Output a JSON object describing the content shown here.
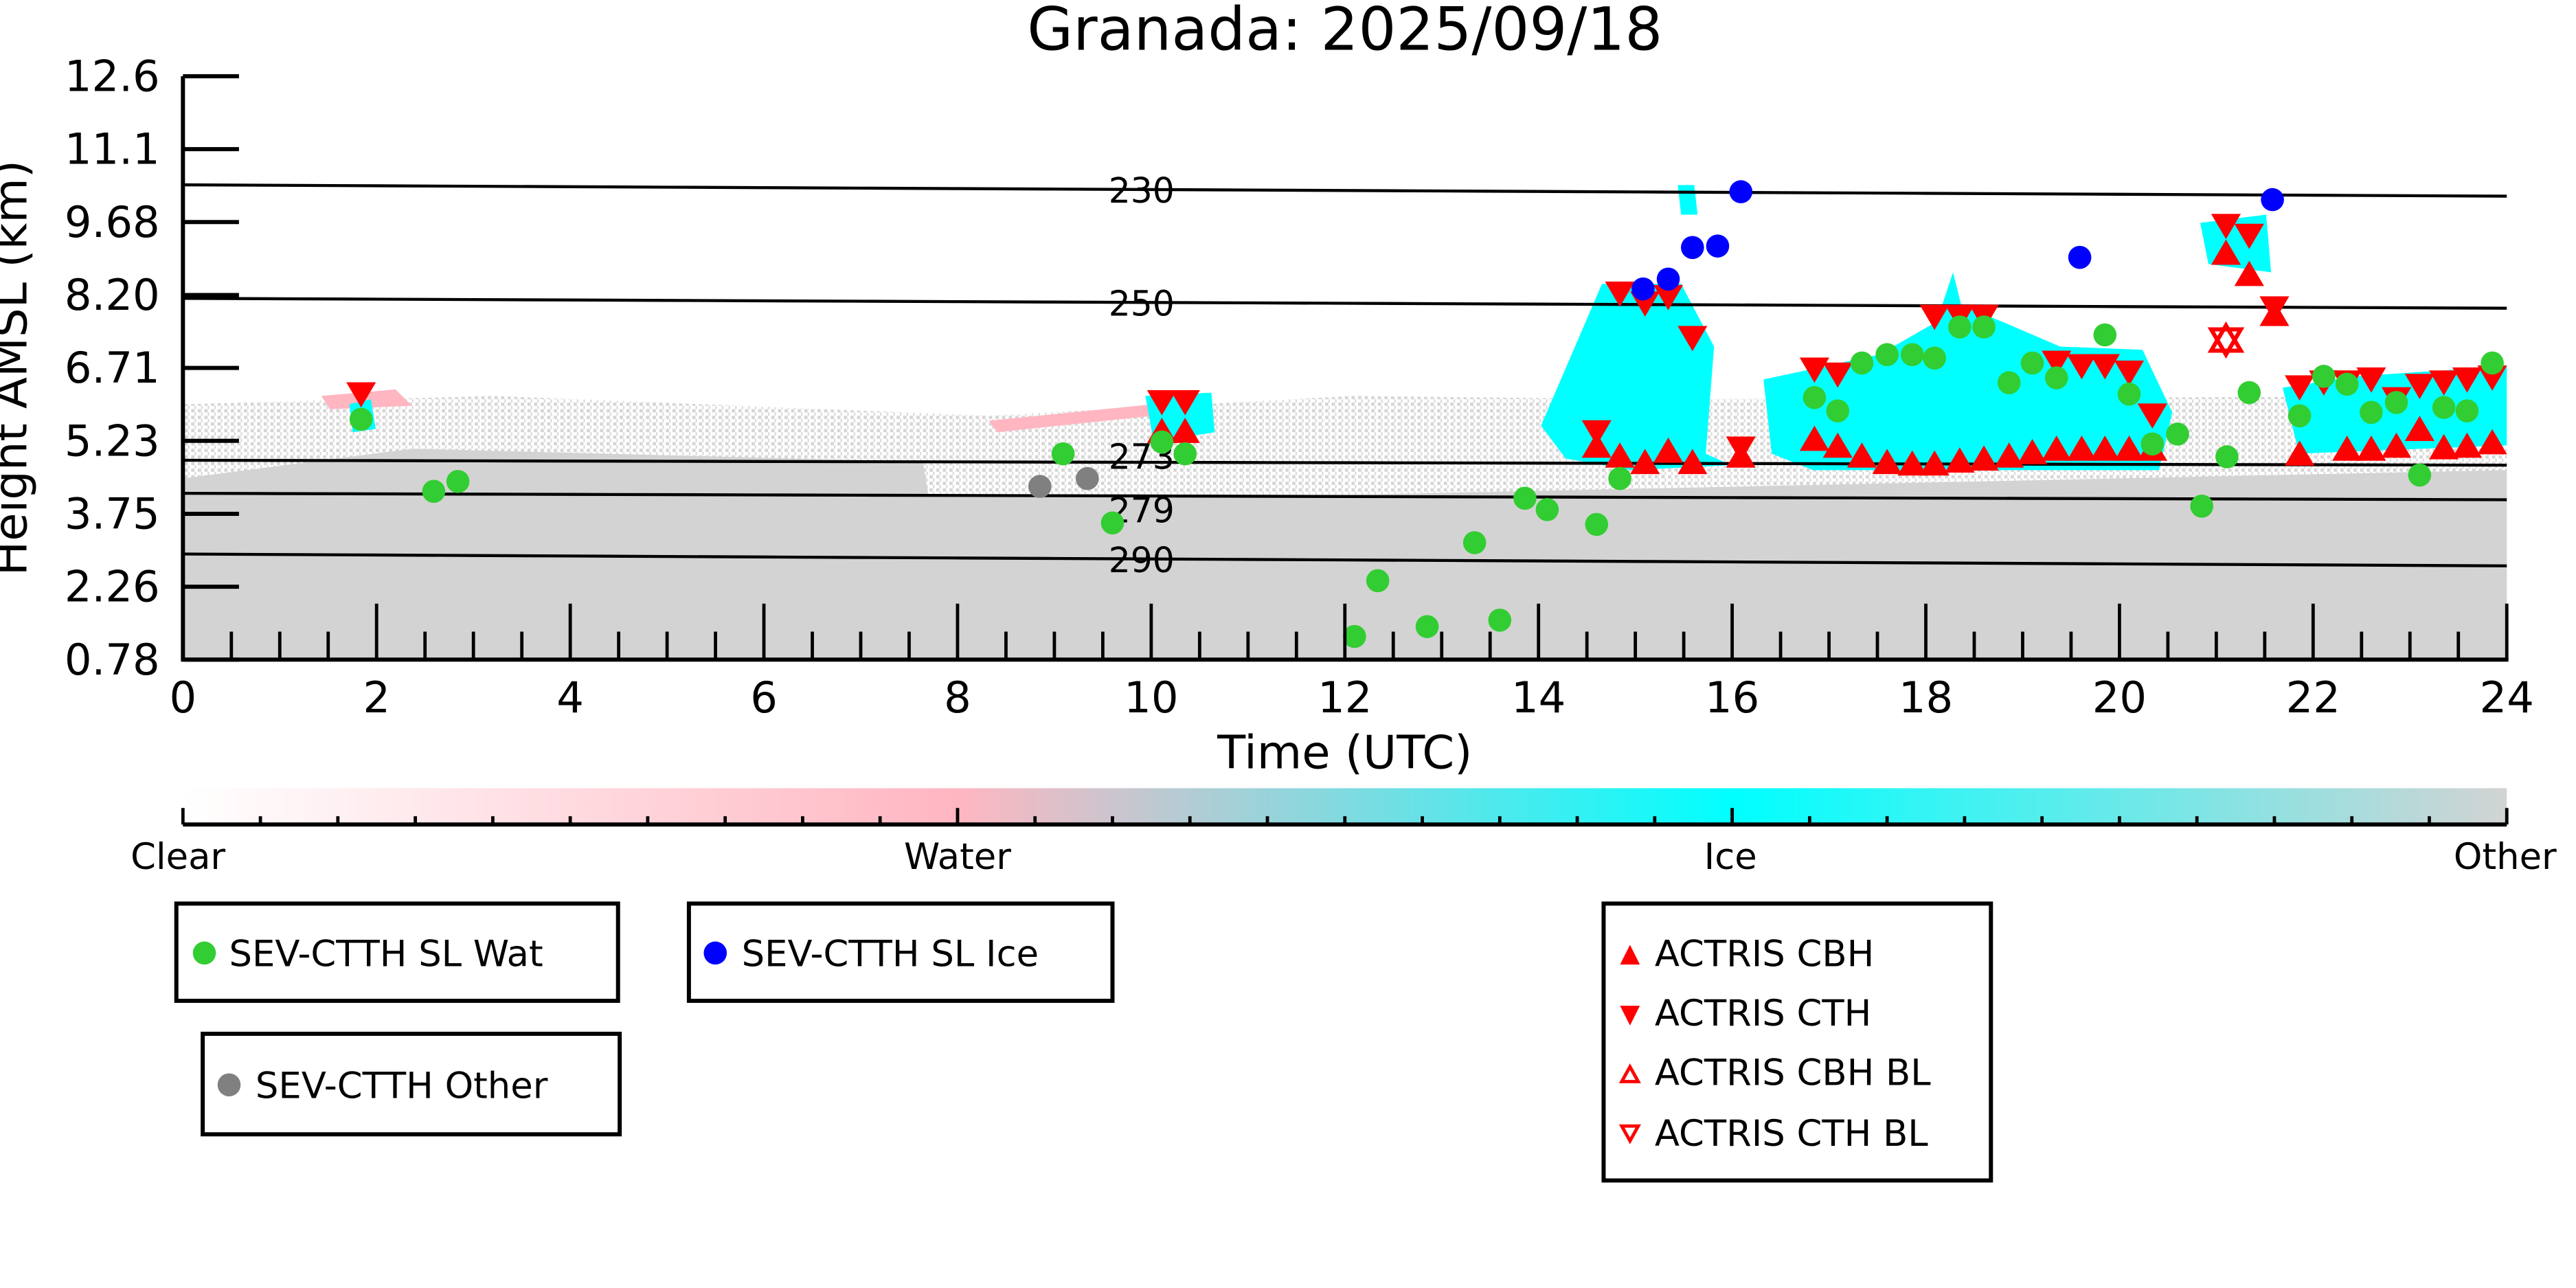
{
  "chart_data": {
    "type": "scatter",
    "title": "Granada: 2025/09/18",
    "xlabel": "Time (UTC)",
    "ylabel": "Height AMSL (km)",
    "xlim": [
      0,
      24
    ],
    "ylim": [
      0.78,
      12.6
    ],
    "xticks": [
      "0",
      "2",
      "4",
      "6",
      "8",
      "10",
      "12",
      "14",
      "16",
      "18",
      "20",
      "22",
      "24"
    ],
    "yticks": [
      "0.78",
      "2.26",
      "3.75",
      "5.23",
      "6.71",
      "8.20",
      "9.68",
      "11.1",
      "12.6"
    ],
    "colorbar": {
      "labels": [
        "Clear",
        "Water",
        "Ice",
        "Other"
      ],
      "colors": [
        "#ffffff",
        "#ffb6c1",
        "#00ffff",
        "#d3d3d3"
      ]
    },
    "isotherms": [
      {
        "label": "230",
        "h_start": 10.4,
        "h_end": 10.17
      },
      {
        "label": "250",
        "h_start": 8.1,
        "h_end": 7.9
      },
      {
        "label": "273",
        "h_start": 4.82,
        "h_end": 4.72
      },
      {
        "label": "279",
        "h_start": 4.15,
        "h_end": 4.02
      },
      {
        "label": "290",
        "h_start": 2.92,
        "h_end": 2.68
      }
    ],
    "series": [
      {
        "name": "SEV-CTTH SL Wat",
        "marker": "circle",
        "color": "#32cd32",
        "points": [
          [
            1.84,
            5.65
          ],
          [
            2.59,
            4.19
          ],
          [
            2.84,
            4.39
          ],
          [
            9.09,
            4.95
          ],
          [
            9.6,
            3.55
          ],
          [
            10.11,
            5.19
          ],
          [
            10.35,
            4.95
          ],
          [
            12.1,
            1.25
          ],
          [
            12.34,
            2.38
          ],
          [
            12.85,
            1.45
          ],
          [
            13.34,
            3.15
          ],
          [
            13.6,
            1.58
          ],
          [
            13.86,
            4.05
          ],
          [
            14.09,
            3.82
          ],
          [
            14.6,
            3.52
          ],
          [
            14.84,
            4.45
          ],
          [
            16.85,
            6.09
          ],
          [
            17.09,
            5.82
          ],
          [
            17.34,
            6.79
          ],
          [
            17.6,
            6.96
          ],
          [
            17.86,
            6.96
          ],
          [
            18.09,
            6.89
          ],
          [
            18.35,
            7.52
          ],
          [
            18.6,
            7.52
          ],
          [
            18.86,
            6.39
          ],
          [
            19.1,
            6.79
          ],
          [
            19.35,
            6.49
          ],
          [
            19.85,
            7.36
          ],
          [
            20.1,
            6.16
          ],
          [
            20.34,
            5.15
          ],
          [
            20.6,
            5.35
          ],
          [
            20.85,
            3.89
          ],
          [
            21.11,
            4.89
          ],
          [
            21.34,
            6.19
          ],
          [
            21.86,
            5.72
          ],
          [
            22.11,
            6.52
          ],
          [
            22.35,
            6.36
          ],
          [
            22.6,
            5.79
          ],
          [
            22.86,
            5.99
          ],
          [
            23.1,
            4.52
          ],
          [
            23.35,
            5.89
          ],
          [
            23.59,
            5.82
          ],
          [
            23.85,
            6.79
          ]
        ]
      },
      {
        "name": "SEV-CTTH SL Ice",
        "marker": "circle",
        "color": "#0000ff",
        "points": [
          [
            15.08,
            8.29
          ],
          [
            15.34,
            8.49
          ],
          [
            15.59,
            9.13
          ],
          [
            15.85,
            9.16
          ],
          [
            16.09,
            10.26
          ],
          [
            19.59,
            8.93
          ],
          [
            21.58,
            10.1
          ]
        ]
      },
      {
        "name": "SEV-CTTH Other",
        "marker": "circle",
        "color": "#808080",
        "points": [
          [
            8.85,
            4.29
          ],
          [
            9.34,
            4.45
          ]
        ]
      },
      {
        "name": "ACTRIS CBH",
        "marker": "triangle-up",
        "color": "#ff0000",
        "points": [
          [
            10.11,
            5.35
          ],
          [
            10.35,
            5.35
          ],
          [
            14.6,
            5.05
          ],
          [
            14.84,
            4.85
          ],
          [
            15.1,
            4.72
          ],
          [
            15.34,
            4.95
          ],
          [
            15.59,
            4.72
          ],
          [
            16.09,
            4.85
          ],
          [
            16.85,
            5.19
          ],
          [
            17.09,
            5.05
          ],
          [
            17.34,
            4.85
          ],
          [
            17.6,
            4.72
          ],
          [
            17.86,
            4.69
          ],
          [
            18.09,
            4.69
          ],
          [
            18.35,
            4.75
          ],
          [
            18.6,
            4.79
          ],
          [
            18.86,
            4.85
          ],
          [
            19.1,
            4.92
          ],
          [
            19.35,
            4.99
          ],
          [
            19.61,
            4.99
          ],
          [
            19.85,
            4.99
          ],
          [
            20.1,
            4.99
          ],
          [
            20.34,
            4.99
          ],
          [
            21.1,
            8.96
          ],
          [
            21.34,
            8.53
          ],
          [
            21.6,
            7.72
          ],
          [
            21.86,
            4.89
          ],
          [
            22.35,
            4.99
          ],
          [
            22.6,
            4.99
          ],
          [
            22.86,
            5.05
          ],
          [
            23.1,
            5.39
          ],
          [
            23.35,
            5.02
          ],
          [
            23.59,
            5.05
          ],
          [
            23.85,
            5.12
          ]
        ]
      },
      {
        "name": "ACTRIS CTH",
        "marker": "triangle-down",
        "color": "#ff0000",
        "points": [
          [
            1.84,
            6.22
          ],
          [
            10.11,
            6.06
          ],
          [
            10.35,
            6.06
          ],
          [
            14.6,
            5.45
          ],
          [
            14.84,
            8.26
          ],
          [
            15.1,
            8.06
          ],
          [
            15.34,
            8.19
          ],
          [
            15.59,
            7.36
          ],
          [
            16.09,
            5.12
          ],
          [
            16.85,
            6.72
          ],
          [
            17.09,
            6.62
          ],
          [
            18.09,
            7.79
          ],
          [
            18.35,
            7.79
          ],
          [
            18.6,
            7.79
          ],
          [
            19.35,
            6.86
          ],
          [
            19.61,
            6.79
          ],
          [
            19.85,
            6.79
          ],
          [
            20.1,
            6.66
          ],
          [
            20.34,
            5.79
          ],
          [
            21.1,
            9.63
          ],
          [
            21.34,
            9.43
          ],
          [
            21.6,
            7.96
          ],
          [
            21.86,
            6.36
          ],
          [
            22.11,
            6.46
          ],
          [
            22.35,
            6.46
          ],
          [
            22.6,
            6.52
          ],
          [
            22.86,
            6.12
          ],
          [
            23.1,
            6.39
          ],
          [
            23.35,
            6.46
          ],
          [
            23.59,
            6.52
          ],
          [
            23.85,
            6.56
          ]
        ]
      },
      {
        "name": "ACTRIS CBH BL",
        "marker": "triangle-up-open",
        "color": "#ff0000",
        "points": [
          [
            21.1,
            7.22
          ]
        ]
      },
      {
        "name": "ACTRIS CTH BL",
        "marker": "triangle-down-open",
        "color": "#ff0000",
        "points": [
          [
            21.1,
            7.29
          ]
        ]
      }
    ],
    "legend": {
      "box1": [
        "SEV-CTTH SL Wat"
      ],
      "box2": [
        "SEV-CTTH SL Ice"
      ],
      "box3": [
        "SEV-CTTH Other"
      ],
      "box4": [
        "ACTRIS CBH",
        "ACTRIS CTH",
        "ACTRIS CBH BL",
        "ACTRIS CTH BL"
      ]
    }
  }
}
